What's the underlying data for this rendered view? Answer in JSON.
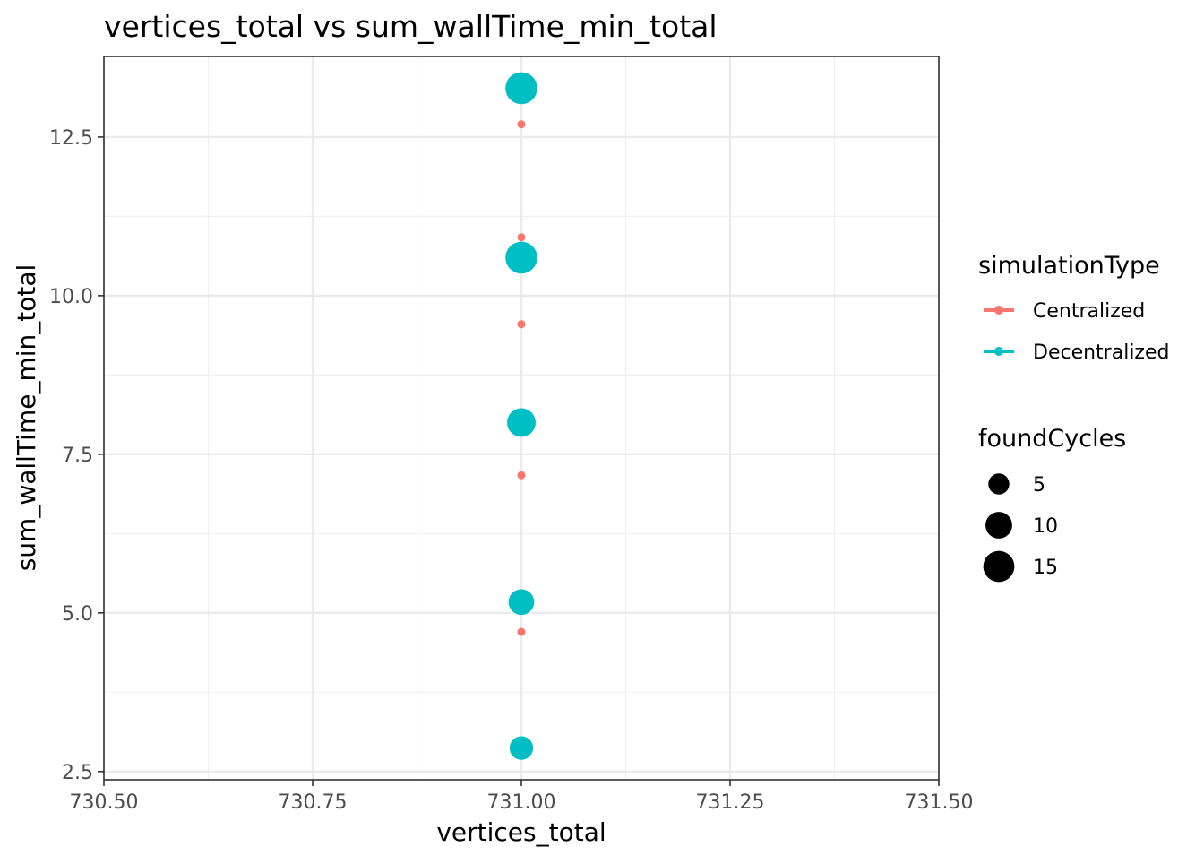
{
  "chart_data": {
    "type": "scatter",
    "title": "vertices_total  vs  sum_wallTime_min_total",
    "xlabel": "vertices_total",
    "ylabel": "sum_wallTime_min_total",
    "xlim": [
      730.5,
      731.5
    ],
    "ylim": [
      2.37,
      13.77
    ],
    "x_ticks": [
      730.5,
      730.75,
      731.0,
      731.25,
      731.5
    ],
    "x_tick_labels": [
      "730.50",
      "730.75",
      "731.00",
      "731.25",
      "731.50"
    ],
    "y_ticks": [
      2.5,
      5.0,
      7.5,
      10.0,
      12.5
    ],
    "y_tick_labels": [
      "2.5",
      "5.0",
      "7.5",
      "10.0",
      "12.5"
    ],
    "grid": true,
    "legend_position": "right",
    "color_legend": {
      "title": "simulationType",
      "entries": [
        {
          "label": "Centralized",
          "color": "#F8766D"
        },
        {
          "label": "Decentralized",
          "color": "#00BFC4"
        }
      ]
    },
    "size_legend": {
      "title": "foundCycles",
      "entries": [
        {
          "label": "5",
          "value": 5
        },
        {
          "label": "10",
          "value": 10
        },
        {
          "label": "15",
          "value": 15
        }
      ]
    },
    "series": [
      {
        "name": "Centralized",
        "color": "#F8766D",
        "points": [
          {
            "x": 731.0,
            "y": 12.7,
            "foundCycles": 0
          },
          {
            "x": 731.0,
            "y": 10.92,
            "foundCycles": 0
          },
          {
            "x": 731.0,
            "y": 9.55,
            "foundCycles": 0
          },
          {
            "x": 731.0,
            "y": 7.17,
            "foundCycles": 0
          },
          {
            "x": 731.0,
            "y": 4.7,
            "foundCycles": 0
          }
        ]
      },
      {
        "name": "Decentralized",
        "color": "#00BFC4",
        "points": [
          {
            "x": 731.0,
            "y": 13.27,
            "foundCycles": 16
          },
          {
            "x": 731.0,
            "y": 10.6,
            "foundCycles": 16
          },
          {
            "x": 731.0,
            "y": 8.0,
            "foundCycles": 12
          },
          {
            "x": 731.0,
            "y": 5.17,
            "foundCycles": 9
          },
          {
            "x": 731.0,
            "y": 2.87,
            "foundCycles": 7
          }
        ]
      }
    ]
  }
}
